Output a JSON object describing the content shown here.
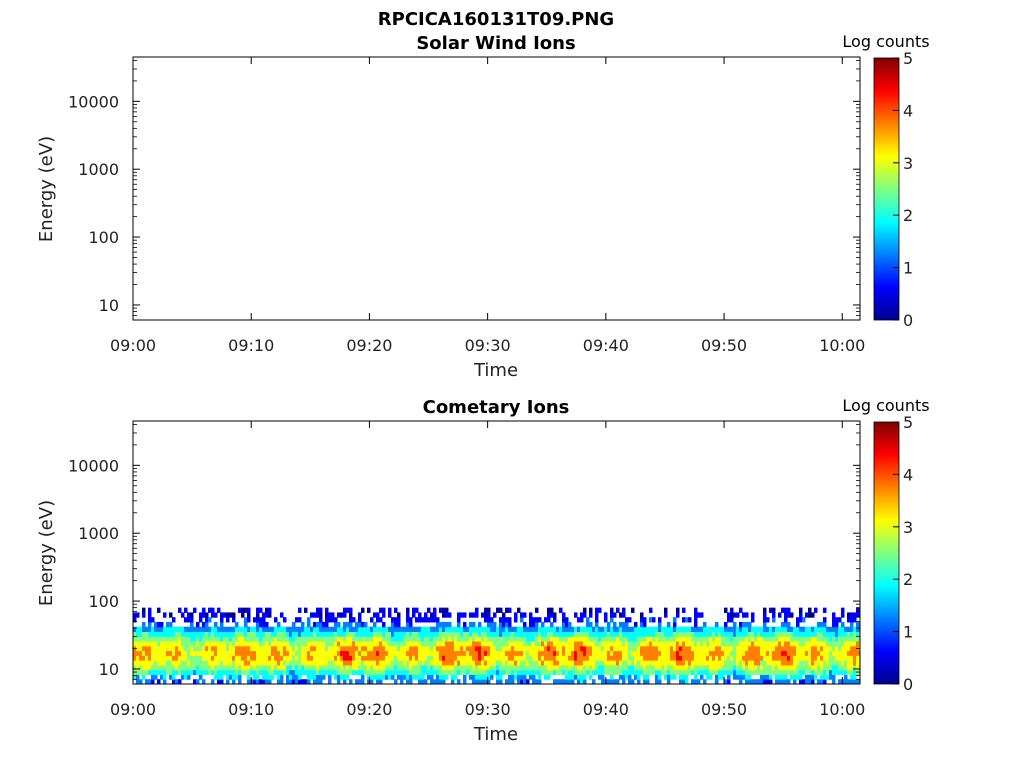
{
  "title": "RPCICA160131T09.PNG",
  "colormap": [
    "#00008f",
    "#0000ff",
    "#0080ff",
    "#00ffff",
    "#80ff80",
    "#ffff00",
    "#ff8000",
    "#ff0000",
    "#800000"
  ],
  "chart_data": [
    {
      "type": "heatmap",
      "title": "Solar Wind Ions",
      "xlabel": "Time",
      "ylabel": "Energy (eV)",
      "x_ticks": [
        "09:00",
        "09:10",
        "09:20",
        "09:30",
        "09:40",
        "09:50",
        "10:00"
      ],
      "x_range_minutes": [
        0,
        61.5
      ],
      "y_scale": "log",
      "y_ticks": [
        10,
        100,
        1000,
        10000
      ],
      "y_tick_labels": [
        "10",
        "100",
        "1000",
        "10000"
      ],
      "y_range": [
        6,
        45000
      ],
      "colorbar": {
        "label": "Log counts",
        "range": [
          0,
          5
        ],
        "ticks": [
          "0",
          "1",
          "2",
          "3",
          "4",
          "5"
        ]
      },
      "data": "empty"
    },
    {
      "type": "heatmap",
      "title": "Cometary Ions",
      "xlabel": "Time",
      "ylabel": "Energy (eV)",
      "x_ticks": [
        "09:00",
        "09:10",
        "09:20",
        "09:30",
        "09:40",
        "09:50",
        "10:00"
      ],
      "x_range_minutes": [
        0,
        61.5
      ],
      "y_scale": "log",
      "y_ticks": [
        10,
        100,
        1000,
        10000
      ],
      "y_tick_labels": [
        "10",
        "100",
        "1000",
        "10000"
      ],
      "y_range": [
        6,
        45000
      ],
      "colorbar": {
        "label": "Log counts",
        "range": [
          0,
          5
        ],
        "ticks": [
          "0",
          "1",
          "2",
          "3",
          "4",
          "5"
        ]
      },
      "data": {
        "energy_band_eV": [
          6,
          80
        ],
        "peak_energy_eV": 17,
        "peak_log_counts_range": [
          3,
          4
        ],
        "description_key": "low-energy ion band across full interval"
      }
    }
  ]
}
